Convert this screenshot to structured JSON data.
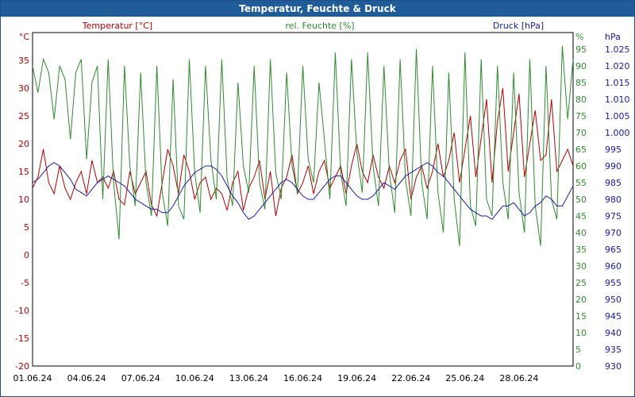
{
  "chart_data": {
    "type": "line",
    "title": "Temperatur, Feuchte & Druck",
    "x_tick_labels": [
      "01.06.24",
      "04.06.24",
      "07.06.24",
      "10.06.24",
      "13.06.24",
      "16.06.24",
      "19.06.24",
      "22.06.24",
      "25.06.24",
      "28.06.24"
    ],
    "x_range": [
      "2024-06-01",
      "2024-07-01"
    ],
    "grid": true,
    "legend": "top",
    "axes": {
      "left": {
        "unit_label": "°C",
        "ticks": [
          "35",
          "30",
          "25",
          "20",
          "15",
          "10",
          "5",
          "0",
          "-5",
          "-10",
          "-15",
          "-20"
        ],
        "range": [
          -20,
          40
        ],
        "color": "#b00000"
      },
      "right1": {
        "unit_label": "%",
        "ticks": [
          "95",
          "90",
          "85",
          "80",
          "75",
          "70",
          "65",
          "60",
          "55",
          "50",
          "45",
          "40",
          "35",
          "30",
          "25",
          "20",
          "15",
          "10",
          "5",
          "0"
        ],
        "range": [
          0,
          100
        ],
        "color": "#2e8b2e"
      },
      "right2": {
        "unit_label": "hPa",
        "ticks": [
          "1.025",
          "1.020",
          "1.015",
          "1.010",
          "1.005",
          "1.000",
          "995",
          "990",
          "985",
          "980",
          "975",
          "970",
          "965",
          "960",
          "955",
          "950",
          "945",
          "940",
          "935",
          "930"
        ],
        "range": [
          930,
          1030
        ],
        "color": "#1a1aa0"
      }
    },
    "series": [
      {
        "name": "Temperatur [°C]",
        "color": "#b00000",
        "axis": "left",
        "x": [
          0,
          0.3,
          0.6,
          0.9,
          1.2,
          1.5,
          1.8,
          2.1,
          2.4,
          2.7,
          3.0,
          3.3,
          3.6,
          3.9,
          4.2,
          4.5,
          4.8,
          5.1,
          5.4,
          5.7,
          6.0,
          6.3,
          6.6,
          6.9,
          7.2,
          7.5,
          7.8,
          8.1,
          8.4,
          8.7,
          9.0,
          9.3,
          9.6,
          9.9,
          10.2,
          10.5,
          10.8,
          11.1,
          11.4,
          11.7,
          12.0,
          12.3,
          12.6,
          12.9,
          13.2,
          13.5,
          13.8,
          14.1,
          14.4,
          14.7,
          15.0,
          15.3,
          15.6,
          15.9,
          16.2,
          16.5,
          16.8,
          17.1,
          17.4,
          17.7,
          18.0,
          18.3,
          18.6,
          18.9,
          19.2,
          19.5,
          19.8,
          20.1,
          20.4,
          20.7,
          21.0,
          21.3,
          21.6,
          21.9,
          22.2,
          22.5,
          22.8,
          23.1,
          23.4,
          23.7,
          24.0,
          24.3,
          24.6,
          24.9,
          25.2,
          25.5,
          25.8,
          26.1,
          26.4,
          26.7,
          27.0,
          27.3,
          27.6,
          27.9,
          28.2,
          28.5,
          28.8,
          29.1,
          29.4,
          29.7,
          30.0
        ],
        "values": [
          12,
          14,
          19,
          13,
          11,
          16,
          12,
          10,
          13,
          15,
          11,
          17,
          13,
          14,
          12,
          15,
          10,
          9,
          15,
          11,
          13,
          15,
          9,
          7,
          13,
          19,
          16,
          11,
          18,
          15,
          10,
          13,
          14,
          10,
          12,
          11,
          8,
          13,
          15,
          8,
          12,
          14,
          17,
          10,
          15,
          7,
          12,
          14,
          18,
          11,
          13,
          16,
          11,
          15,
          17,
          12,
          14,
          16,
          11,
          16,
          20,
          15,
          13,
          18,
          14,
          12,
          16,
          13,
          17,
          19,
          10,
          14,
          16,
          12,
          15,
          20,
          14,
          17,
          22,
          13,
          19,
          25,
          14,
          21,
          28,
          13,
          24,
          30,
          15,
          22,
          29,
          14,
          20,
          26,
          17,
          18,
          28,
          15,
          17,
          19,
          16
        ]
      },
      {
        "name": "rel. Feuchte [%]",
        "color": "#2e8b2e",
        "axis": "right1",
        "x": [
          0,
          0.3,
          0.6,
          0.9,
          1.2,
          1.5,
          1.8,
          2.1,
          2.4,
          2.7,
          3.0,
          3.3,
          3.6,
          3.9,
          4.2,
          4.5,
          4.8,
          5.1,
          5.4,
          5.7,
          6.0,
          6.3,
          6.6,
          6.9,
          7.2,
          7.5,
          7.8,
          8.1,
          8.4,
          8.7,
          9.0,
          9.3,
          9.6,
          9.9,
          10.2,
          10.5,
          10.8,
          11.1,
          11.4,
          11.7,
          12.0,
          12.3,
          12.6,
          12.9,
          13.2,
          13.5,
          13.8,
          14.1,
          14.4,
          14.7,
          15.0,
          15.3,
          15.6,
          15.9,
          16.2,
          16.5,
          16.8,
          17.1,
          17.4,
          17.7,
          18.0,
          18.3,
          18.6,
          18.9,
          19.2,
          19.5,
          19.8,
          20.1,
          20.4,
          20.7,
          21.0,
          21.3,
          21.6,
          21.9,
          22.2,
          22.5,
          22.8,
          23.1,
          23.4,
          23.7,
          24.0,
          24.3,
          24.6,
          24.9,
          25.2,
          25.5,
          25.8,
          26.1,
          26.4,
          26.7,
          27.0,
          27.3,
          27.6,
          27.9,
          28.2,
          28.5,
          28.8,
          29.1,
          29.4,
          29.7,
          30.0
        ],
        "values": [
          90,
          82,
          92,
          88,
          74,
          90,
          86,
          68,
          88,
          92,
          62,
          85,
          90,
          50,
          92,
          55,
          38,
          90,
          60,
          48,
          88,
          55,
          45,
          90,
          52,
          42,
          86,
          48,
          44,
          92,
          58,
          46,
          90,
          62,
          50,
          92,
          56,
          48,
          85,
          60,
          52,
          90,
          55,
          47,
          92,
          58,
          50,
          88,
          60,
          52,
          90,
          62,
          55,
          85,
          68,
          50,
          94,
          58,
          48,
          92,
          64,
          52,
          94,
          60,
          48,
          90,
          58,
          46,
          92,
          56,
          45,
          95,
          55,
          44,
          90,
          52,
          40,
          88,
          50,
          36,
          94,
          48,
          42,
          92,
          50,
          45,
          90,
          55,
          44,
          88,
          52,
          40,
          92,
          48,
          36,
          90,
          50,
          44,
          96,
          74,
          92
        ]
      },
      {
        "name": "Druck [hPa]",
        "color": "#1a1aa0",
        "axis": "right2",
        "x": [
          0,
          0.3,
          0.6,
          0.9,
          1.2,
          1.5,
          1.8,
          2.1,
          2.4,
          2.7,
          3.0,
          3.3,
          3.6,
          3.9,
          4.2,
          4.5,
          4.8,
          5.1,
          5.4,
          5.7,
          6.0,
          6.3,
          6.6,
          6.9,
          7.2,
          7.5,
          7.8,
          8.1,
          8.4,
          8.7,
          9.0,
          9.3,
          9.6,
          9.9,
          10.2,
          10.5,
          10.8,
          11.1,
          11.4,
          11.7,
          12.0,
          12.3,
          12.6,
          12.9,
          13.2,
          13.5,
          13.8,
          14.1,
          14.4,
          14.7,
          15.0,
          15.3,
          15.6,
          15.9,
          16.2,
          16.5,
          16.8,
          17.1,
          17.4,
          17.7,
          18.0,
          18.3,
          18.6,
          18.9,
          19.2,
          19.5,
          19.8,
          20.1,
          20.4,
          20.7,
          21.0,
          21.3,
          21.6,
          21.9,
          22.2,
          22.5,
          22.8,
          23.1,
          23.4,
          23.7,
          24.0,
          24.3,
          24.6,
          24.9,
          25.2,
          25.5,
          25.8,
          26.1,
          26.4,
          26.7,
          27.0,
          27.3,
          27.6,
          27.9,
          28.2,
          28.5,
          28.8,
          29.1,
          29.4,
          29.7,
          30.0
        ],
        "values": [
          985,
          986,
          988,
          990,
          991,
          990,
          988,
          986,
          983,
          982,
          981,
          983,
          985,
          986,
          987,
          986,
          985,
          984,
          982,
          980,
          979,
          978,
          977,
          977,
          976,
          976,
          978,
          981,
          984,
          986,
          988,
          989,
          990,
          990,
          989,
          987,
          984,
          981,
          979,
          976,
          974,
          975,
          977,
          979,
          981,
          983,
          985,
          986,
          985,
          983,
          981,
          980,
          980,
          982,
          984,
          986,
          987,
          987,
          985,
          983,
          981,
          980,
          980,
          981,
          983,
          985,
          984,
          983,
          985,
          987,
          988,
          989,
          990,
          991,
          990,
          988,
          987,
          985,
          983,
          981,
          979,
          977,
          976,
          975,
          975,
          974,
          976,
          978,
          978,
          979,
          977,
          975,
          976,
          978,
          979,
          981,
          980,
          978,
          978,
          981,
          984
        ]
      }
    ]
  }
}
